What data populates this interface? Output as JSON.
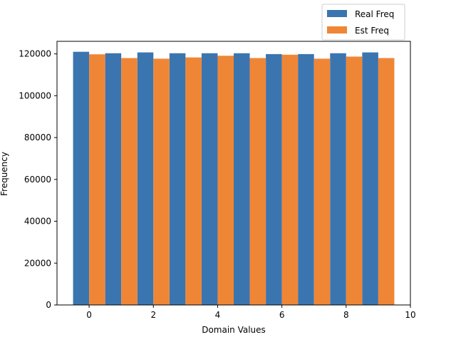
{
  "chart_data": {
    "type": "bar",
    "title": "",
    "xlabel": "Domain Values",
    "ylabel": "Frequency",
    "categories": [
      0,
      1,
      2,
      3,
      4,
      5,
      6,
      7,
      8,
      9
    ],
    "series": [
      {
        "name": "Real Freq",
        "color": "#3b75af",
        "values": [
          121000,
          120300,
          120700,
          120300,
          120300,
          120300,
          119900,
          119900,
          120300,
          120700
        ]
      },
      {
        "name": "Est Freq",
        "color": "#ef8636",
        "values": [
          119800,
          118000,
          117700,
          118300,
          119100,
          118000,
          119600,
          117700,
          118700,
          118000
        ]
      }
    ],
    "xlim": [
      -1,
      10
    ],
    "ylim": [
      0,
      126000
    ],
    "xticks": [
      "0",
      "2",
      "4",
      "6",
      "8",
      "10"
    ],
    "yticks": [
      "0",
      "20000",
      "40000",
      "60000",
      "80000",
      "100000",
      "120000"
    ],
    "legend_position": "top-right",
    "grid": false
  }
}
